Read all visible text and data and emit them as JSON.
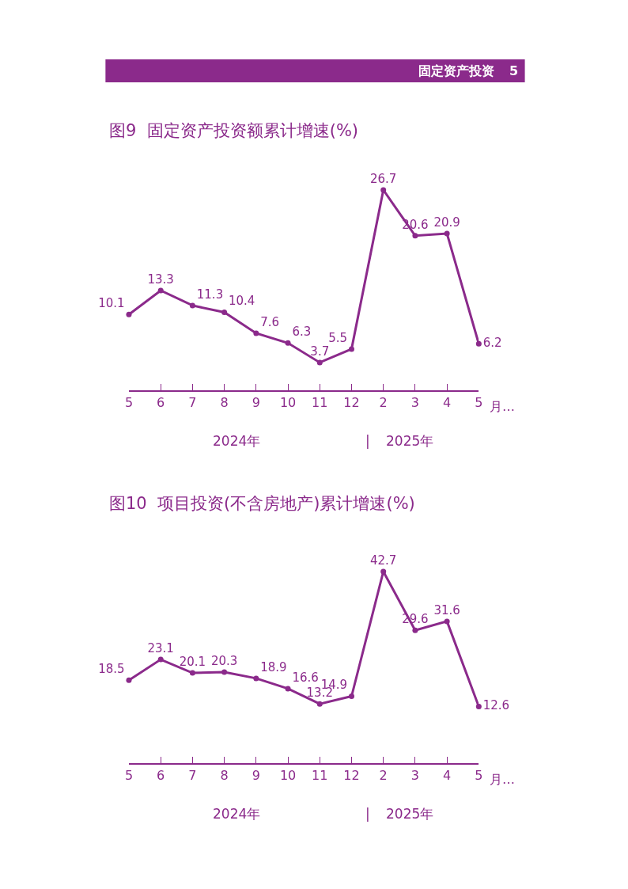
{
  "chart_data": [
    {
      "type": "line",
      "title": "图9  固定资产投资额累计增速(%)",
      "xlabel": "月…",
      "categories": [
        "5",
        "6",
        "7",
        "8",
        "9",
        "10",
        "11",
        "12",
        "2",
        "3",
        "4",
        "5"
      ],
      "series": [
        {
          "color": "#8b2a8b",
          "values": [
            10.1,
            13.3,
            11.3,
            10.4,
            7.6,
            6.3,
            3.7,
            5.5,
            26.7,
            20.6,
            20.9,
            6.2
          ]
        }
      ],
      "tick_labels": "x",
      "data_labels": true,
      "marker": "circle",
      "line_style": "solid",
      "annotations": [
        "固定资产投资",
        "5",
        "2024年",
        "|",
        "2025年"
      ]
    },
    {
      "type": "line",
      "title": "图10  项目投资(不含房地产)累计增速(%)",
      "xlabel": "月…",
      "categories": [
        "5",
        "6",
        "7",
        "8",
        "9",
        "10",
        "11",
        "12",
        "2",
        "3",
        "4",
        "5"
      ],
      "series": [
        {
          "color": "#8b2a8b",
          "values": [
            18.5,
            23.1,
            20.1,
            20.3,
            18.9,
            16.6,
            13.2,
            14.9,
            42.7,
            29.6,
            31.6,
            12.6
          ]
        }
      ],
      "tick_labels": "x",
      "data_labels": true,
      "marker": "circle",
      "line_style": "solid",
      "annotations": [
        "2024年",
        "|",
        "2025年"
      ]
    }
  ]
}
